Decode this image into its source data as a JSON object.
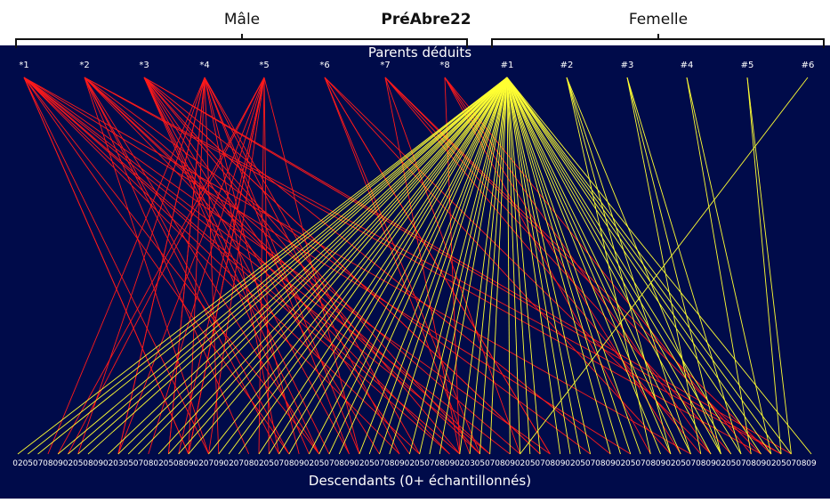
{
  "header": {
    "male_label": "Mâle",
    "title": "PréAbre22",
    "female_label": "Femelle"
  },
  "top_axis_title": "Parents déduits",
  "bottom_axis_title": "Descendants (0+ échantillonnés)",
  "colors": {
    "background": "#000b4a",
    "male_lines": "#ff1a1a",
    "female_lines": "#ffff33",
    "labels": "#ffffff"
  },
  "male_parents": [
    "*1",
    "*2",
    "*3",
    "*4",
    "*5",
    "*6",
    "*7",
    "*8"
  ],
  "female_parents": [
    "#1",
    "#2",
    "#3",
    "#4",
    "#5",
    "#6"
  ],
  "offspring_ids": [
    "02",
    "05",
    "07",
    "08",
    "09",
    "02",
    "05",
    "08",
    "09",
    "02",
    "03",
    "05",
    "07",
    "08",
    "02",
    "05",
    "08",
    "09",
    "02",
    "07",
    "09",
    "02",
    "07",
    "08",
    "02",
    "05",
    "07",
    "08",
    "09",
    "02",
    "05",
    "07",
    "08",
    "09",
    "02",
    "05",
    "07",
    "08",
    "09",
    "02",
    "05",
    "07",
    "08",
    "09",
    "02",
    "03",
    "05",
    "07",
    "08",
    "09",
    "02",
    "05",
    "07",
    "08",
    "09",
    "02",
    "05",
    "07",
    "08",
    "09",
    "02",
    "05",
    "07",
    "08",
    "09",
    "02",
    "05",
    "07",
    "08",
    "09",
    "02",
    "05",
    "07",
    "08",
    "09",
    "02",
    "05",
    "07",
    "08",
    "09"
  ]
}
